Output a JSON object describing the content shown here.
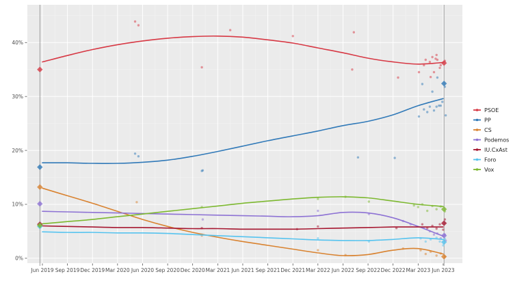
{
  "chart_data": {
    "type": "line",
    "title": "",
    "xlabel": "",
    "ylabel": "",
    "x_tick_labels": [
      "Jun 2019",
      "Sep 2019",
      "Dec 2019",
      "Mar 2020",
      "Jun 2020",
      "Sep 2020",
      "Dec 2020",
      "Mar 2021",
      "Jun 2021",
      "Sep 2021",
      "Dec 2021",
      "Mar 2022",
      "Jun 2022",
      "Sep 2022",
      "Dec 2022",
      "Mar 2023",
      "Jun 2023"
    ],
    "x_tick_months": [
      0,
      3,
      6,
      9,
      12,
      15,
      18,
      21,
      24,
      27,
      30,
      33,
      36,
      39,
      42,
      45,
      48
    ],
    "y_tick_labels": [
      "0%",
      "10%",
      "20%",
      "30%",
      "40%"
    ],
    "y_tick_values": [
      0,
      10,
      20,
      30,
      40
    ],
    "xlim_months": [
      -1.8,
      50.3
    ],
    "ylim_percent": [
      -0.9,
      47.0
    ],
    "grid": true,
    "legend_position": "right",
    "colors": {
      "panel_background": "#ebebeb",
      "page_background": "#ffffff",
      "grid_major": "#ffffff",
      "grid_minor": "#f3f3f3",
      "axis_text": "#4d4d4d",
      "event_line": "#888888"
    },
    "election_markers": [
      {
        "label": "election-2019",
        "month": -0.3
      },
      {
        "label": "election-2023",
        "month": 48.1
      }
    ],
    "series": [
      {
        "name": "PSOE",
        "color": "#d73844",
        "trend_months": [
          0,
          3,
          6,
          9,
          12,
          15,
          18,
          21,
          24,
          27,
          30,
          33,
          36,
          39,
          42,
          45,
          48
        ],
        "trend": [
          36.4,
          37.6,
          38.7,
          39.6,
          40.3,
          40.8,
          41.1,
          41.2,
          41.0,
          40.5,
          39.9,
          39.0,
          38.1,
          37.1,
          36.4,
          36.0,
          36.3
        ],
        "polls": [
          [
            11.1,
            43.9
          ],
          [
            11.5,
            43.2
          ],
          [
            19.1,
            35.4
          ],
          [
            22.5,
            42.3
          ],
          [
            30.0,
            41.2
          ],
          [
            37.1,
            35.0
          ],
          [
            37.3,
            41.9
          ],
          [
            42.6,
            33.5
          ],
          [
            45.1,
            34.5
          ],
          [
            45.7,
            35.8
          ],
          [
            45.9,
            36.8
          ],
          [
            46.4,
            36.4
          ],
          [
            46.5,
            33.6
          ],
          [
            46.7,
            37.3
          ],
          [
            46.9,
            34.5
          ],
          [
            47.1,
            37.0
          ],
          [
            47.2,
            37.7
          ],
          [
            47.3,
            36.8
          ],
          [
            47.6,
            35.3
          ],
          [
            47.7,
            35.8
          ],
          [
            48.2,
            36.6
          ]
        ],
        "results": {
          "2019": 35.0,
          "2023": 36.2
        }
      },
      {
        "name": "PP",
        "color": "#3079b8",
        "trend_months": [
          0,
          3,
          6,
          9,
          12,
          15,
          18,
          21,
          24,
          27,
          30,
          33,
          36,
          39,
          42,
          45,
          48
        ],
        "trend": [
          17.7,
          17.7,
          17.6,
          17.6,
          17.8,
          18.2,
          18.9,
          19.8,
          20.8,
          21.8,
          22.7,
          23.6,
          24.6,
          25.4,
          26.6,
          28.3,
          29.6
        ],
        "polls": [
          [
            11.1,
            19.4
          ],
          [
            11.5,
            18.9
          ],
          [
            19.1,
            16.2
          ],
          [
            19.2,
            16.3
          ],
          [
            37.8,
            18.7
          ],
          [
            42.2,
            18.6
          ],
          [
            45.1,
            26.3
          ],
          [
            45.5,
            32.3
          ],
          [
            45.7,
            27.6
          ],
          [
            46.1,
            27.1
          ],
          [
            46.4,
            28.1
          ],
          [
            46.7,
            30.9
          ],
          [
            46.9,
            27.4
          ],
          [
            47.2,
            28.1
          ],
          [
            47.3,
            33.5
          ],
          [
            47.5,
            28.3
          ],
          [
            47.7,
            28.3
          ],
          [
            47.9,
            29.0
          ],
          [
            48.2,
            31.8
          ],
          [
            48.3,
            26.5
          ]
        ],
        "results": {
          "2019": 16.9,
          "2023": 32.4
        }
      },
      {
        "name": "CS",
        "color": "#d9822f",
        "trend_months": [
          0,
          3,
          6,
          9,
          12,
          15,
          18,
          21,
          24,
          27,
          30,
          33,
          36,
          39,
          42,
          45,
          48
        ],
        "trend": [
          13.0,
          11.6,
          10.2,
          8.7,
          7.2,
          5.9,
          4.8,
          3.9,
          3.1,
          2.4,
          1.7,
          1.0,
          0.5,
          0.7,
          1.5,
          1.8,
          0.8
        ],
        "polls": [
          [
            11.3,
            10.4
          ],
          [
            19.1,
            4.2
          ],
          [
            33.0,
            1.5
          ],
          [
            36.3,
            0.6
          ],
          [
            43.2,
            1.8
          ],
          [
            45.3,
            1.5
          ],
          [
            45.9,
            0.8
          ],
          [
            46.5,
            1.2
          ],
          [
            47.2,
            0.5
          ],
          [
            47.7,
            0.9
          ],
          [
            48.2,
            0.3
          ]
        ],
        "results": {
          "2019": 13.2,
          "2023": 0.3
        }
      },
      {
        "name": "Podemos",
        "color": "#8d72d4",
        "trend_months": [
          0,
          3,
          6,
          9,
          12,
          15,
          18,
          21,
          24,
          27,
          30,
          33,
          36,
          39,
          42,
          45,
          48
        ],
        "trend": [
          8.7,
          8.6,
          8.5,
          8.4,
          8.3,
          8.2,
          8.1,
          8.0,
          7.9,
          7.8,
          7.7,
          7.9,
          8.5,
          8.4,
          7.5,
          5.9,
          4.1
        ],
        "polls": [
          [
            19.2,
            7.2
          ],
          [
            33.0,
            8.8
          ],
          [
            39.1,
            8.2
          ],
          [
            43.2,
            6.9
          ],
          [
            44.1,
            6.3
          ],
          [
            45.7,
            5.6
          ],
          [
            46.4,
            5.0
          ],
          [
            46.9,
            4.4
          ],
          [
            47.3,
            4.6
          ],
          [
            47.7,
            3.7
          ],
          [
            48.2,
            4.4
          ],
          [
            48.3,
            3.3
          ]
        ],
        "results": {
          "2019": 10.1,
          "2023": 4.2
        }
      },
      {
        "name": "IU.CxAst",
        "color": "#a6162f",
        "trend_months": [
          0,
          3,
          6,
          9,
          12,
          15,
          18,
          21,
          24,
          27,
          30,
          33,
          36,
          39,
          42,
          45,
          48
        ],
        "trend": [
          6.0,
          5.9,
          5.8,
          5.7,
          5.7,
          5.6,
          5.5,
          5.5,
          5.4,
          5.4,
          5.4,
          5.5,
          5.6,
          5.7,
          5.8,
          5.8,
          5.8
        ],
        "polls": [
          [
            19.1,
            5.6
          ],
          [
            30.5,
            5.4
          ],
          [
            33.0,
            5.9
          ],
          [
            42.4,
            5.6
          ],
          [
            45.5,
            6.3
          ],
          [
            46.1,
            5.6
          ],
          [
            46.7,
            6.0
          ],
          [
            47.2,
            5.5
          ],
          [
            47.6,
            6.3
          ],
          [
            48.0,
            5.3
          ],
          [
            48.2,
            7.2
          ]
        ],
        "results": {
          "2019": 6.3,
          "2023": 6.5
        }
      },
      {
        "name": "Foro",
        "color": "#55c3ef",
        "trend_months": [
          0,
          3,
          6,
          9,
          12,
          15,
          18,
          21,
          24,
          27,
          30,
          33,
          36,
          39,
          42,
          45,
          48
        ],
        "trend": [
          4.9,
          4.8,
          4.8,
          4.7,
          4.7,
          4.6,
          4.4,
          4.2,
          4.0,
          3.8,
          3.6,
          3.4,
          3.3,
          3.3,
          3.5,
          3.8,
          3.5
        ],
        "polls": [
          [
            19.1,
            4.4
          ],
          [
            33.0,
            3.7
          ],
          [
            39.1,
            3.1
          ],
          [
            45.3,
            3.7
          ],
          [
            45.9,
            3.1
          ],
          [
            46.5,
            3.5
          ],
          [
            47.2,
            3.8
          ],
          [
            47.6,
            3.1
          ],
          [
            48.0,
            2.4
          ],
          [
            48.2,
            3.6
          ]
        ],
        "results": {
          "2019": 5.9,
          "2023": 3.0
        }
      },
      {
        "name": "Vox",
        "color": "#7cb82f",
        "trend_months": [
          0,
          3,
          6,
          9,
          12,
          15,
          18,
          21,
          24,
          27,
          30,
          33,
          36,
          39,
          42,
          45,
          48
        ],
        "trend": [
          6.4,
          6.8,
          7.2,
          7.7,
          8.2,
          8.7,
          9.2,
          9.7,
          10.2,
          10.6,
          11.0,
          11.3,
          11.4,
          11.2,
          10.6,
          10.0,
          9.6
        ],
        "polls": [
          [
            19.1,
            9.5
          ],
          [
            33.0,
            11.0
          ],
          [
            36.3,
            11.4
          ],
          [
            39.1,
            10.5
          ],
          [
            44.5,
            9.8
          ],
          [
            45.0,
            9.5
          ],
          [
            45.5,
            10.0
          ],
          [
            46.1,
            8.8
          ],
          [
            46.7,
            9.7
          ],
          [
            47.2,
            9.1
          ],
          [
            47.7,
            9.6
          ],
          [
            48.2,
            8.7
          ]
        ],
        "results": {
          "2019": 6.1,
          "2023": 9.1
        }
      }
    ]
  }
}
